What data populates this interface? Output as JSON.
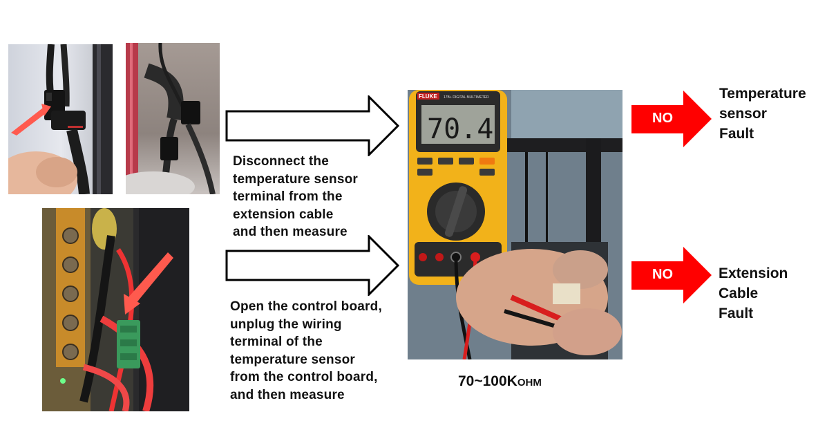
{
  "steps": [
    {
      "instruction": [
        "Disconnect the",
        "temperature sensor",
        "terminal from the",
        "extension cable",
        "and then measure"
      ],
      "result_badge": "NO",
      "result_text": [
        "Temperature",
        "sensor",
        "Fault"
      ]
    },
    {
      "instruction": [
        "Open the control board,",
        "unplug the wiring",
        "terminal of the",
        "temperature sensor",
        "from the control board,",
        "and then measure"
      ],
      "result_badge": "NO",
      "result_text": [
        "Extension",
        "Cable",
        "Fault"
      ]
    }
  ],
  "measurement": {
    "range": "70~100K",
    "unit": "OHM"
  },
  "multimeter": {
    "brand": "FLUKE",
    "model": "17B+ DIGITAL MULTIMETER",
    "reading": "70.4"
  },
  "colors": {
    "no_arrow": "#ff0000",
    "outline_arrow": "#000000",
    "meter_body": "#f2b21a",
    "probe_red": "#d81e1e"
  }
}
